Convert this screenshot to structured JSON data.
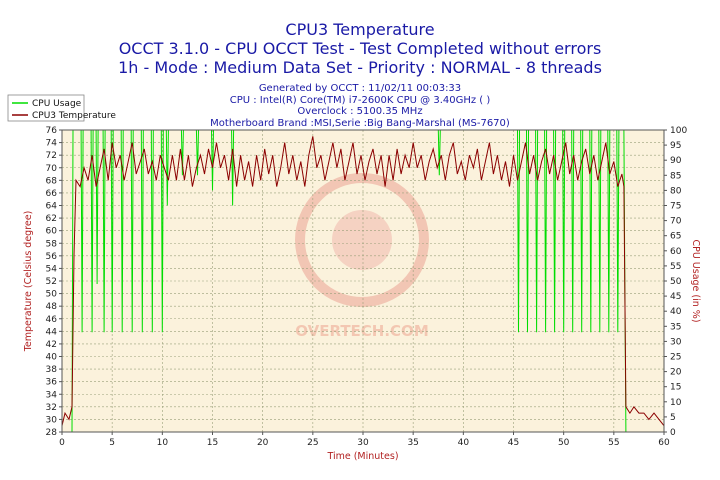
{
  "chart_data": {
    "type": "line",
    "title": "CPU3 Temperature",
    "subtitle_1": "OCCT 3.1.0 - CPU OCCT Test - Test Completed without errors",
    "subtitle_2": "1h - Mode : Medium Data Set - Priority : NORMAL - 8 threads",
    "info": [
      "Generated by OCCT : 11/02/11 00:03:33",
      "CPU : Intel(R) Core(TM) i7-2600K CPU @ 3.40GHz (  )",
      "Overclock : 5100.35 MHz",
      "Motherboard Brand :MSI,Serie :Big Bang-Marshal (MS-7670)"
    ],
    "xlabel": "Time (Minutes)",
    "ylabel_left": "Temperature (Celsius degree)",
    "ylabel_right": "CPU Usage (in %)",
    "xlim": [
      0,
      60
    ],
    "ylim_left": [
      28,
      76
    ],
    "ylim_right": [
      0,
      100
    ],
    "x_ticks": [
      0,
      5,
      10,
      15,
      20,
      25,
      30,
      35,
      40,
      45,
      50,
      55,
      60
    ],
    "y_left_ticks": [
      28,
      30,
      32,
      34,
      36,
      38,
      40,
      42,
      44,
      46,
      48,
      50,
      52,
      54,
      56,
      58,
      60,
      62,
      64,
      66,
      68,
      70,
      72,
      74,
      76
    ],
    "y_right_ticks": [
      0,
      5,
      10,
      15,
      20,
      25,
      30,
      35,
      40,
      45,
      50,
      55,
      60,
      65,
      70,
      75,
      80,
      85,
      90,
      95,
      100
    ],
    "legend_position": "top-left",
    "series": [
      {
        "name": "CPU Usage",
        "axis": "right",
        "color": "#00dd00",
        "points": [
          [
            0,
            0
          ],
          [
            1.0,
            0
          ],
          [
            1.1,
            100
          ],
          [
            1.9,
            100
          ],
          [
            2.0,
            33
          ],
          [
            2.1,
            100
          ],
          [
            2.9,
            100
          ],
          [
            3.0,
            33
          ],
          [
            3.1,
            100
          ],
          [
            3.4,
            100
          ],
          [
            3.5,
            49
          ],
          [
            3.6,
            100
          ],
          [
            4.1,
            100
          ],
          [
            4.2,
            33
          ],
          [
            4.3,
            100
          ],
          [
            4.9,
            100
          ],
          [
            5.0,
            33
          ],
          [
            5.1,
            100
          ],
          [
            5.9,
            100
          ],
          [
            6.0,
            33
          ],
          [
            6.1,
            100
          ],
          [
            6.9,
            100
          ],
          [
            7.0,
            33
          ],
          [
            7.1,
            100
          ],
          [
            7.9,
            100
          ],
          [
            8.0,
            33
          ],
          [
            8.1,
            100
          ],
          [
            8.9,
            100
          ],
          [
            9.0,
            33
          ],
          [
            9.1,
            100
          ],
          [
            9.9,
            100
          ],
          [
            10.0,
            33
          ],
          [
            10.1,
            100
          ],
          [
            10.4,
            100
          ],
          [
            10.5,
            75
          ],
          [
            10.6,
            100
          ],
          [
            11.9,
            100
          ],
          [
            12.0,
            85
          ],
          [
            12.1,
            100
          ],
          [
            13.4,
            100
          ],
          [
            13.5,
            85
          ],
          [
            13.6,
            100
          ],
          [
            14.9,
            100
          ],
          [
            15.0,
            80
          ],
          [
            15.1,
            100
          ],
          [
            16.9,
            100
          ],
          [
            17.0,
            75
          ],
          [
            17.1,
            100
          ],
          [
            37.5,
            100
          ],
          [
            37.6,
            85
          ],
          [
            37.7,
            100
          ],
          [
            45.4,
            100
          ],
          [
            45.5,
            33
          ],
          [
            45.6,
            100
          ],
          [
            46.3,
            100
          ],
          [
            46.4,
            33
          ],
          [
            46.5,
            100
          ],
          [
            47.2,
            100
          ],
          [
            47.3,
            33
          ],
          [
            47.4,
            100
          ],
          [
            48.1,
            100
          ],
          [
            48.2,
            33
          ],
          [
            48.3,
            100
          ],
          [
            49.0,
            100
          ],
          [
            49.1,
            33
          ],
          [
            49.2,
            100
          ],
          [
            49.9,
            100
          ],
          [
            50.0,
            33
          ],
          [
            50.1,
            100
          ],
          [
            50.8,
            100
          ],
          [
            50.9,
            33
          ],
          [
            51.0,
            100
          ],
          [
            51.7,
            100
          ],
          [
            51.8,
            33
          ],
          [
            51.9,
            100
          ],
          [
            52.6,
            100
          ],
          [
            52.7,
            33
          ],
          [
            52.8,
            100
          ],
          [
            53.5,
            100
          ],
          [
            53.6,
            33
          ],
          [
            53.7,
            100
          ],
          [
            54.4,
            100
          ],
          [
            54.5,
            33
          ],
          [
            54.6,
            100
          ],
          [
            55.3,
            100
          ],
          [
            55.4,
            33
          ],
          [
            55.5,
            100
          ],
          [
            56.0,
            100
          ],
          [
            56.1,
            45
          ],
          [
            56.2,
            0
          ],
          [
            60,
            0
          ]
        ]
      },
      {
        "name": "CPU3 Temperature",
        "axis": "left",
        "color": "#8b0000",
        "points": [
          [
            0,
            29
          ],
          [
            0.3,
            31
          ],
          [
            0.7,
            30
          ],
          [
            1.0,
            32
          ],
          [
            1.2,
            56
          ],
          [
            1.4,
            68
          ],
          [
            1.8,
            67
          ],
          [
            2.2,
            70
          ],
          [
            2.6,
            68
          ],
          [
            3.0,
            72
          ],
          [
            3.4,
            67
          ],
          [
            3.8,
            70
          ],
          [
            4.2,
            73
          ],
          [
            4.6,
            68
          ],
          [
            5.0,
            74
          ],
          [
            5.4,
            70
          ],
          [
            5.8,
            72
          ],
          [
            6.2,
            68
          ],
          [
            6.6,
            71
          ],
          [
            7.0,
            74
          ],
          [
            7.4,
            69
          ],
          [
            7.8,
            71
          ],
          [
            8.2,
            73
          ],
          [
            8.6,
            69
          ],
          [
            9.0,
            71
          ],
          [
            9.4,
            68
          ],
          [
            9.8,
            72
          ],
          [
            10.2,
            70
          ],
          [
            10.6,
            68
          ],
          [
            11.0,
            72
          ],
          [
            11.4,
            68
          ],
          [
            11.8,
            73
          ],
          [
            12.2,
            68
          ],
          [
            12.6,
            72
          ],
          [
            13.0,
            67
          ],
          [
            13.4,
            70
          ],
          [
            13.8,
            72
          ],
          [
            14.2,
            69
          ],
          [
            14.6,
            73
          ],
          [
            15.0,
            70
          ],
          [
            15.4,
            74
          ],
          [
            15.8,
            70
          ],
          [
            16.2,
            72
          ],
          [
            16.6,
            68
          ],
          [
            17.0,
            73
          ],
          [
            17.4,
            67
          ],
          [
            17.8,
            72
          ],
          [
            18.2,
            68
          ],
          [
            18.6,
            71
          ],
          [
            19.0,
            67
          ],
          [
            19.4,
            72
          ],
          [
            19.8,
            68
          ],
          [
            20.2,
            73
          ],
          [
            20.6,
            69
          ],
          [
            21.0,
            72
          ],
          [
            21.4,
            67
          ],
          [
            21.8,
            70
          ],
          [
            22.2,
            74
          ],
          [
            22.6,
            69
          ],
          [
            23.0,
            72
          ],
          [
            23.4,
            68
          ],
          [
            23.8,
            71
          ],
          [
            24.2,
            67
          ],
          [
            24.6,
            72
          ],
          [
            25.0,
            75
          ],
          [
            25.4,
            70
          ],
          [
            25.8,
            72
          ],
          [
            26.2,
            68
          ],
          [
            26.6,
            71
          ],
          [
            27.0,
            74
          ],
          [
            27.4,
            70
          ],
          [
            27.8,
            73
          ],
          [
            28.2,
            68
          ],
          [
            28.6,
            71
          ],
          [
            29.0,
            74
          ],
          [
            29.4,
            69
          ],
          [
            29.8,
            72
          ],
          [
            30.2,
            68
          ],
          [
            30.6,
            71
          ],
          [
            31.0,
            73
          ],
          [
            31.4,
            69
          ],
          [
            31.8,
            72
          ],
          [
            32.2,
            67
          ],
          [
            32.6,
            72
          ],
          [
            33.0,
            68
          ],
          [
            33.4,
            73
          ],
          [
            33.8,
            69
          ],
          [
            34.2,
            72
          ],
          [
            34.6,
            70
          ],
          [
            35.0,
            74
          ],
          [
            35.4,
            70
          ],
          [
            35.8,
            72
          ],
          [
            36.2,
            68
          ],
          [
            36.6,
            71
          ],
          [
            37.0,
            73
          ],
          [
            37.4,
            70
          ],
          [
            37.8,
            72
          ],
          [
            38.2,
            68
          ],
          [
            38.6,
            72
          ],
          [
            39.0,
            74
          ],
          [
            39.4,
            69
          ],
          [
            39.8,
            71
          ],
          [
            40.2,
            68
          ],
          [
            40.6,
            72
          ],
          [
            41.0,
            70
          ],
          [
            41.4,
            73
          ],
          [
            41.8,
            68
          ],
          [
            42.2,
            71
          ],
          [
            42.6,
            74
          ],
          [
            43.0,
            69
          ],
          [
            43.4,
            72
          ],
          [
            43.8,
            68
          ],
          [
            44.2,
            71
          ],
          [
            44.6,
            67
          ],
          [
            45.0,
            72
          ],
          [
            45.4,
            68
          ],
          [
            45.8,
            71
          ],
          [
            46.2,
            74
          ],
          [
            46.6,
            69
          ],
          [
            47.0,
            72
          ],
          [
            47.4,
            68
          ],
          [
            47.8,
            71
          ],
          [
            48.2,
            73
          ],
          [
            48.6,
            69
          ],
          [
            49.0,
            72
          ],
          [
            49.4,
            68
          ],
          [
            49.8,
            71
          ],
          [
            50.2,
            74
          ],
          [
            50.6,
            69
          ],
          [
            51.0,
            72
          ],
          [
            51.4,
            68
          ],
          [
            51.8,
            71
          ],
          [
            52.2,
            73
          ],
          [
            52.6,
            69
          ],
          [
            53.0,
            72
          ],
          [
            53.4,
            68
          ],
          [
            53.8,
            71
          ],
          [
            54.2,
            74
          ],
          [
            54.6,
            69
          ],
          [
            55.0,
            71
          ],
          [
            55.4,
            67
          ],
          [
            55.8,
            69
          ],
          [
            56.0,
            67
          ],
          [
            56.2,
            32
          ],
          [
            56.6,
            31
          ],
          [
            57.0,
            32
          ],
          [
            57.5,
            31
          ],
          [
            58.0,
            31
          ],
          [
            58.5,
            30
          ],
          [
            59.0,
            31
          ],
          [
            59.5,
            30
          ],
          [
            60.0,
            29
          ]
        ]
      }
    ],
    "watermark": "OVERTECH.COM",
    "colors": {
      "title": "#1a1aa6",
      "plot_background": "#fbf2dc",
      "grid": "#9aa07a",
      "axis_label": "#b22222",
      "cpu_usage": "#00dd00",
      "temperature": "#8b0000"
    }
  }
}
